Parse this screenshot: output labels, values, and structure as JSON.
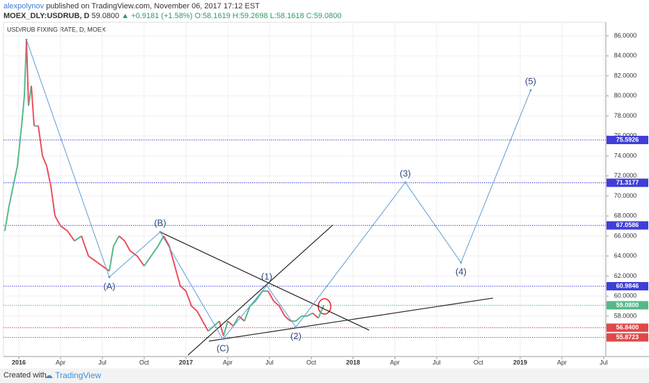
{
  "header": {
    "author": "alexpolynov",
    "published": "published on TradingView.com, November 06, 2017 17:12 EST",
    "symbol": "MOEX_DLY:USDRUB, D",
    "last": "59.0800",
    "change": "+0.9181 (+1.58%)",
    "ohlc": "O:58.1619 H:59.2698 L:58.1618 C:59.0800"
  },
  "chart_data": {
    "type": "line",
    "title": "USD/RUB FIXING RATE, D, MOEX",
    "up_color": "#53b987",
    "down_color": "#eb4d5c",
    "x": [
      -1.0,
      -0.7,
      -0.4,
      -0.1,
      0.2,
      0.4,
      0.55,
      0.7,
      0.9,
      1.1,
      1.4,
      1.7,
      2.0,
      2.3,
      2.6,
      3.0,
      3.5,
      4.0,
      4.5,
      5.0,
      5.5,
      6.0,
      6.5,
      6.8,
      7.2,
      7.6,
      8.0,
      8.5,
      9.0,
      9.5,
      10.0,
      10.4,
      10.8,
      11.2,
      11.6,
      12.0,
      12.4,
      12.8,
      13.2,
      13.6,
      14.0,
      14.4,
      14.7,
      15.0,
      15.4,
      15.8,
      16.2,
      16.6,
      17.0,
      17.5,
      17.9,
      18.3,
      18.7,
      19.1,
      19.5,
      19.9,
      20.3,
      20.7,
      21.1,
      21.5,
      21.9
    ],
    "values": [
      66.5,
      69,
      71,
      73,
      77,
      80,
      85.6,
      79,
      81,
      77,
      77,
      74,
      73,
      71,
      68,
      67,
      66.5,
      65.5,
      66,
      64,
      63.5,
      63,
      62.5,
      65,
      66,
      65.5,
      64.5,
      64,
      63,
      64,
      65,
      66,
      65,
      63,
      61,
      60.5,
      59,
      58.5,
      57.5,
      56.5,
      57.0,
      57.5,
      56.0,
      57.5,
      57,
      58,
      57.5,
      59,
      59.5,
      60.5,
      60.5,
      59.5,
      59,
      58,
      57.5,
      57.5,
      58,
      58,
      58.3,
      57.8,
      59.08
    ],
    "xlim": [
      -1.1,
      42.15
    ],
    "xticks": [
      {
        "value": 0,
        "label": "2016"
      },
      {
        "value": 3,
        "label": "Apr"
      },
      {
        "value": 6,
        "label": "Jul"
      },
      {
        "value": 9,
        "label": "Oct"
      },
      {
        "value": 12,
        "label": "2017"
      },
      {
        "value": 15,
        "label": "Apr"
      },
      {
        "value": 18,
        "label": "Jul"
      },
      {
        "value": 21,
        "label": "Oct"
      },
      {
        "value": 24,
        "label": "2018"
      },
      {
        "value": 27,
        "label": "Apr"
      },
      {
        "value": 30,
        "label": "Jul"
      },
      {
        "value": 33,
        "label": "Oct"
      },
      {
        "value": 36,
        "label": "2019"
      },
      {
        "value": 39,
        "label": "Apr"
      },
      {
        "value": 42,
        "label": "Jul"
      }
    ],
    "ylim": [
      53.96,
      87.35
    ],
    "yticks": [
      {
        "value": 58,
        "label": "58.0000"
      },
      {
        "value": 60,
        "label": "60.0000"
      },
      {
        "value": 62,
        "label": "62.0000"
      },
      {
        "value": 64,
        "label": "64.0000"
      },
      {
        "value": 66,
        "label": "66.0000"
      },
      {
        "value": 68,
        "label": "68.0000"
      },
      {
        "value": 70,
        "label": "70.0000"
      },
      {
        "value": 72,
        "label": "72.0000"
      },
      {
        "value": 74,
        "label": "74.0000"
      },
      {
        "value": 76,
        "label": "76.0000"
      },
      {
        "value": 78,
        "label": "78.0000"
      },
      {
        "value": 80,
        "label": "80.0000"
      },
      {
        "value": 82,
        "label": "82.0000"
      },
      {
        "value": 84,
        "label": "84.0000"
      },
      {
        "value": 86,
        "label": "86.0000"
      }
    ],
    "grid": true,
    "levels": [
      {
        "value": 75.5926,
        "label": "75.5926",
        "color": "#3f3fd8"
      },
      {
        "value": 71.3177,
        "label": "71.3177",
        "color": "#3f3fd8"
      },
      {
        "value": 67.0586,
        "label": "67.0586",
        "color": "#3f3fd8"
      },
      {
        "value": 60.9846,
        "label": "60.9846",
        "color": "#3f3fd8"
      },
      {
        "value": 59.08,
        "label": "59.0800",
        "color": "#53b987"
      },
      {
        "value": 56.84,
        "label": "56.8400",
        "color": "#e04848"
      },
      {
        "value": 55.8723,
        "label": "55.8723",
        "color": "#e04848"
      }
    ],
    "waves": {
      "color": "#5b9bd5",
      "labels": [
        null,
        "(A)",
        "(B)",
        "(C)",
        "(1)",
        "(2)",
        "(3)",
        "(4)",
        "(5)"
      ],
      "x": [
        0.55,
        6.5,
        10.15,
        14.65,
        17.8,
        19.9,
        27.75,
        31.75,
        36.75
      ],
      "values": [
        85.6,
        61.9,
        66.4,
        55.7,
        61.05,
        56.9,
        71.35,
        63.35,
        80.55
      ]
    },
    "trendlines": [
      {
        "x": [
          12.15,
          22.55
        ],
        "values": [
          54.1,
          67.1
        ]
      },
      {
        "x": [
          10.15,
          25.15
        ],
        "values": [
          66.4,
          56.6
        ]
      },
      {
        "x": [
          13.65,
          34.05
        ],
        "values": [
          55.5,
          59.8
        ]
      }
    ]
  },
  "footer": {
    "created": "Created with",
    "brand": "TradingView"
  }
}
